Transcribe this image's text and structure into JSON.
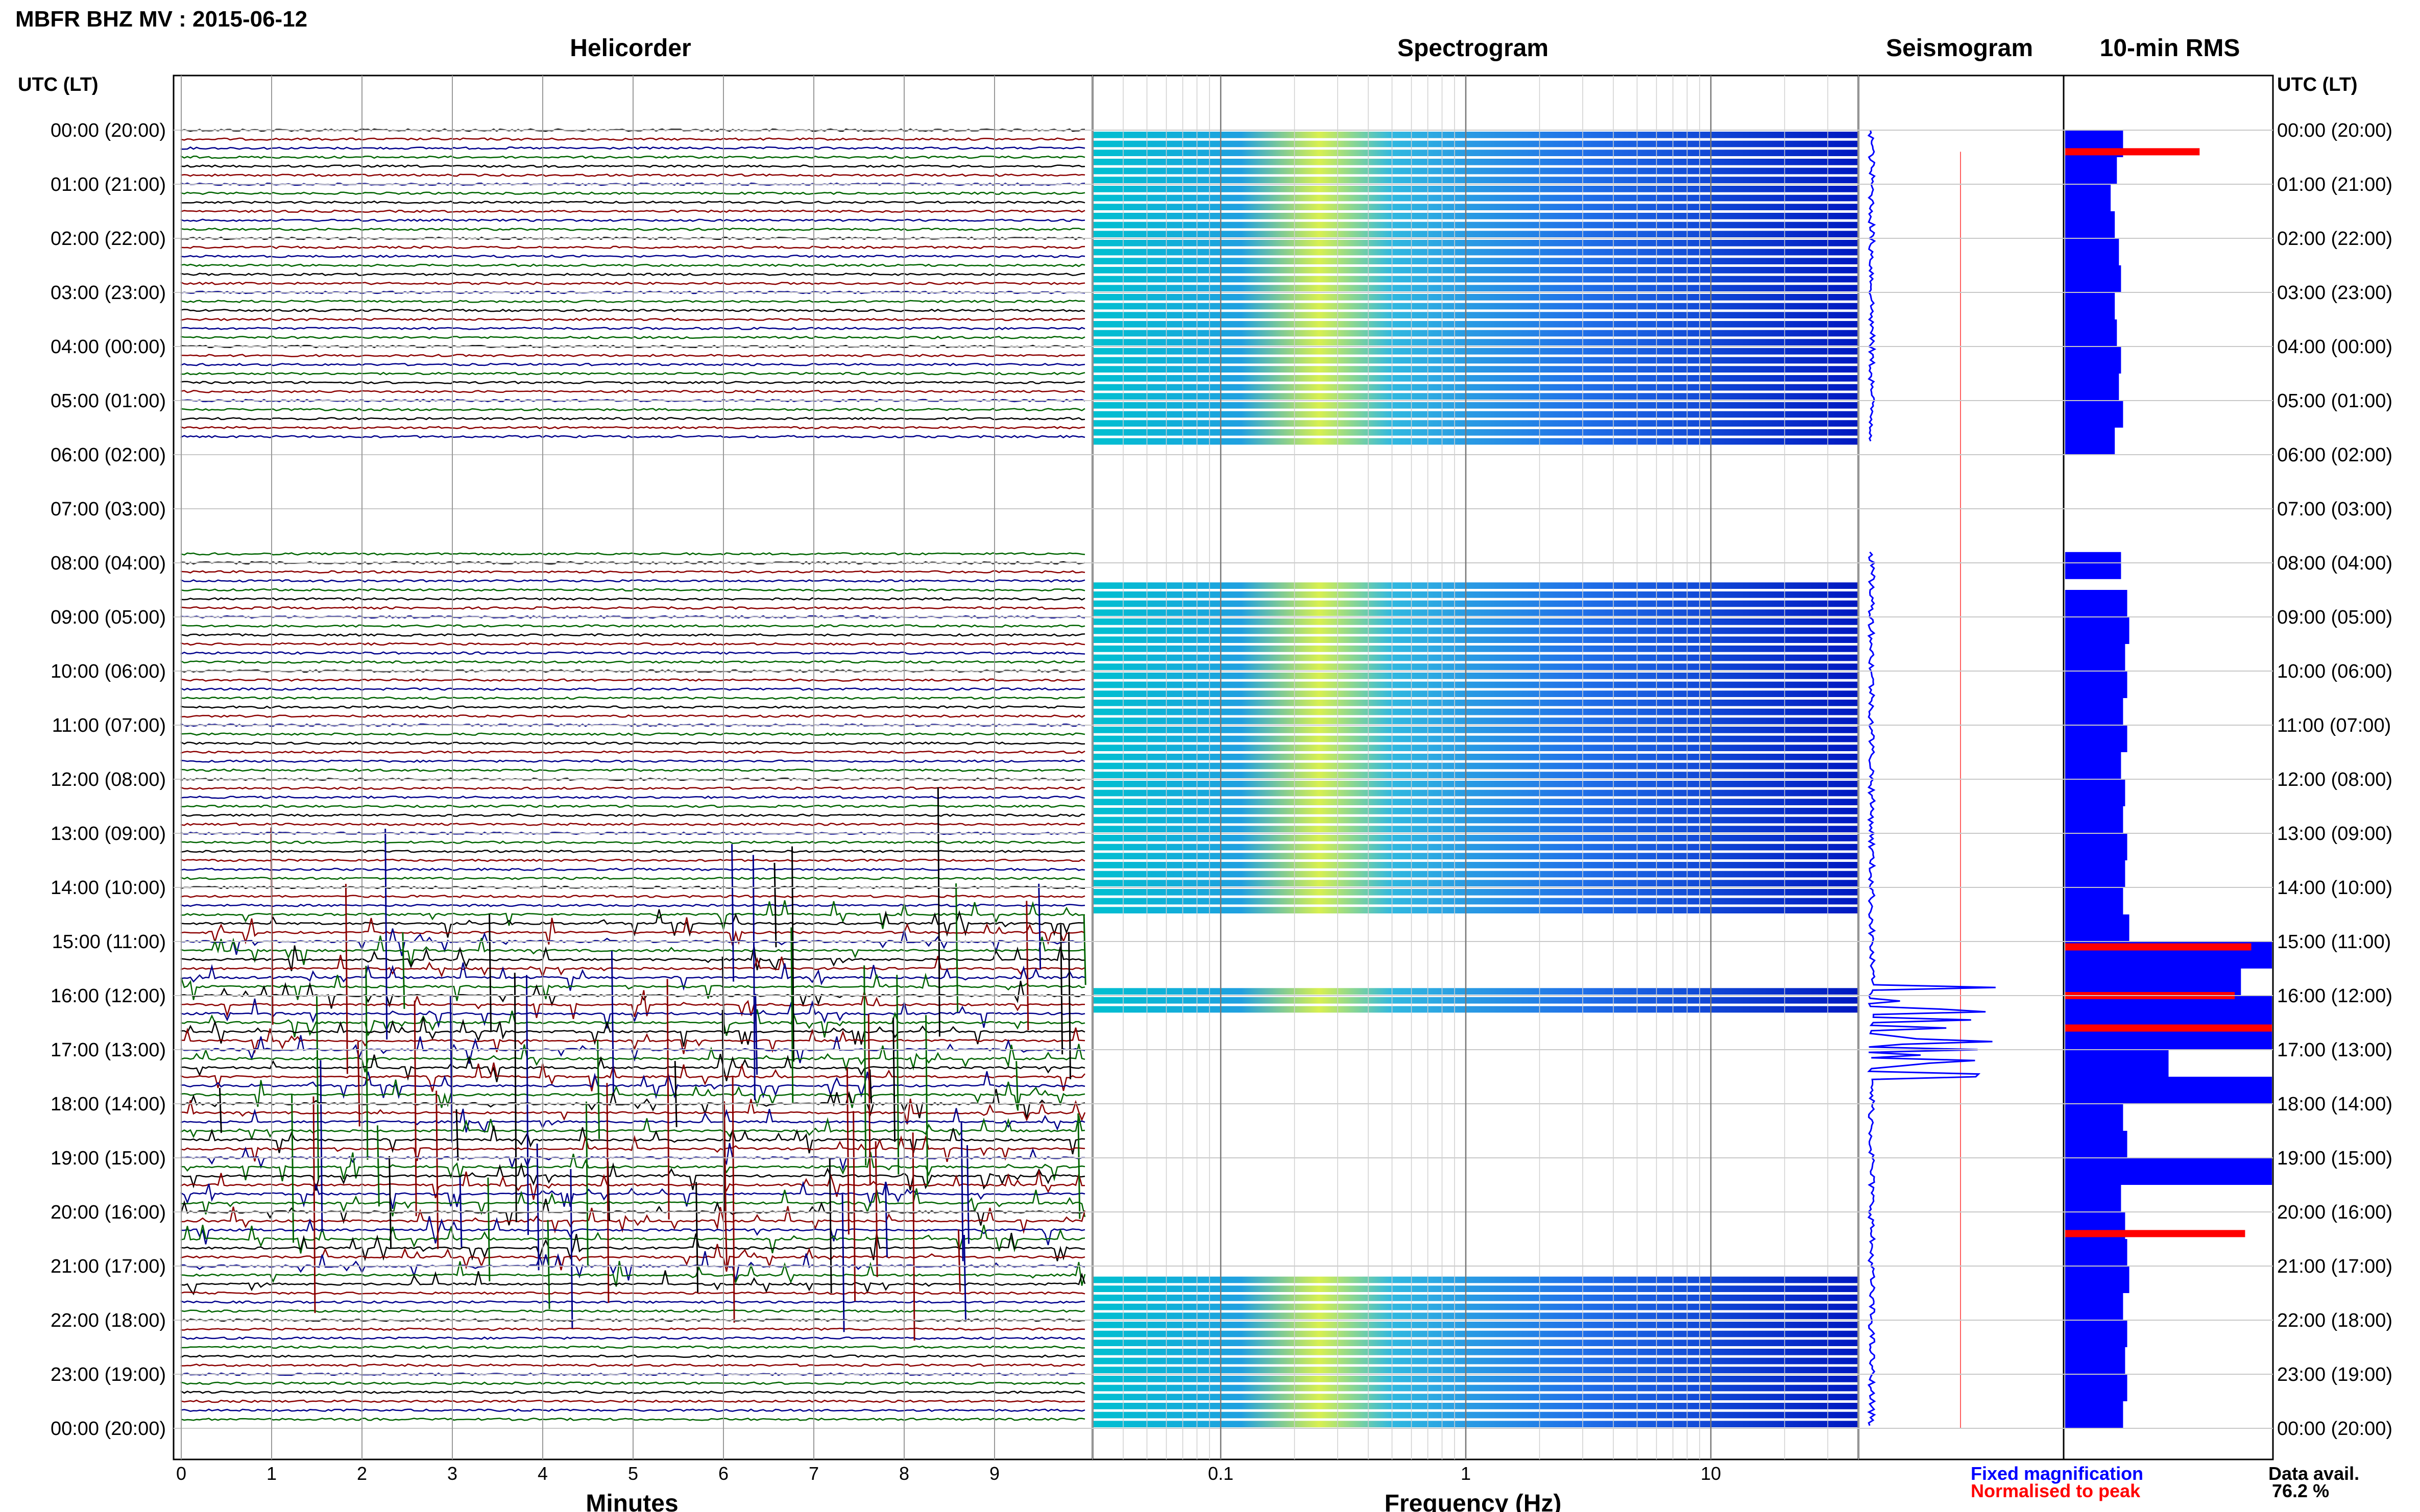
{
  "title": "MBFR BHZ MV : 2015-06-12",
  "panels": {
    "helicorder": "Helicorder",
    "spectrogram": "Spectrogram",
    "seismogram": "Seismogram",
    "rms": "10-min RMS"
  },
  "time_header": "UTC (LT)",
  "time_labels": [
    "00:00 (20:00)",
    "01:00 (21:00)",
    "02:00 (22:00)",
    "03:00 (23:00)",
    "04:00 (00:00)",
    "05:00 (01:00)",
    "06:00 (02:00)",
    "07:00 (03:00)",
    "08:00 (04:00)",
    "09:00 (05:00)",
    "10:00 (06:00)",
    "11:00 (07:00)",
    "12:00 (08:00)",
    "13:00 (09:00)",
    "14:00 (10:00)",
    "15:00 (11:00)",
    "16:00 (12:00)",
    "17:00 (13:00)",
    "18:00 (14:00)",
    "19:00 (15:00)",
    "20:00 (16:00)",
    "21:00 (17:00)",
    "22:00 (18:00)",
    "23:00 (19:00)",
    "00:00 (20:00)"
  ],
  "x_axes": {
    "minutes_ticks": [
      "0",
      "1",
      "2",
      "3",
      "4",
      "5",
      "6",
      "7",
      "8",
      "9"
    ],
    "minutes_label": "Minutes",
    "freq_ticks": [
      "0.1",
      "1",
      "10"
    ],
    "freq_label": "Frequency (Hz)"
  },
  "legend": {
    "fixed": "Fixed magnification",
    "normalised": "Normalised to peak"
  },
  "data_availability": {
    "label": "Data avail.",
    "value": "76.2 %"
  },
  "colors": {
    "trace_black": "#000000",
    "trace_red": "#8b0000",
    "trace_blue": "#00008b",
    "trace_green": "#006400",
    "rms_fixed": "#0000ff",
    "rms_normalised": "#ff0000"
  },
  "chart_data": [
    {
      "type": "line",
      "title": "Helicorder",
      "xlabel": "Minutes",
      "xlim": [
        0,
        10
      ],
      "rows_per_hour": 6,
      "data_gap_hours": [
        [
          5.8,
          7.8
        ]
      ],
      "high_activity_hours": [
        [
          14.5,
          21.5
        ]
      ]
    },
    {
      "type": "heatmap",
      "title": "Spectrogram",
      "xlabel": "Frequency (Hz)",
      "x_scale": "log",
      "xlim": [
        0.03,
        40
      ],
      "peak_frequency_hz": 0.25,
      "data_hours": [
        [
          0,
          5.8
        ],
        [
          8.2,
          14.5
        ],
        [
          15.8,
          16.3
        ],
        [
          21.1,
          24
        ]
      ]
    },
    {
      "type": "line",
      "title": "Seismogram",
      "data_hours": [
        [
          0,
          5.8
        ],
        [
          7.8,
          24
        ]
      ]
    },
    {
      "type": "bar",
      "title": "10-min RMS",
      "orientation": "horizontal",
      "xlim": [
        0,
        1
      ],
      "series_fixed_hours": [
        0.0,
        0.5,
        1.0,
        1.5,
        2.0,
        2.5,
        3.0,
        3.5,
        4.0,
        4.5,
        5.0,
        5.5,
        7.8,
        8.5,
        9.0,
        9.5,
        10.0,
        10.5,
        11.0,
        11.5,
        12.0,
        12.5,
        13.0,
        13.5,
        14.0,
        14.5,
        15.0,
        15.5,
        16.0,
        16.5,
        17.0,
        17.5,
        18.0,
        18.5,
        19.0,
        19.5,
        20.0,
        20.5,
        21.0,
        21.5,
        22.0,
        22.5,
        23.0,
        23.5
      ],
      "series_fixed_values": [
        0.28,
        0.25,
        0.22,
        0.24,
        0.26,
        0.27,
        0.24,
        0.25,
        0.27,
        0.26,
        0.28,
        0.24,
        0.27,
        0.3,
        0.31,
        0.29,
        0.3,
        0.28,
        0.3,
        0.27,
        0.29,
        0.28,
        0.3,
        0.29,
        0.28,
        0.31,
        1.0,
        0.85,
        1.0,
        1.0,
        0.5,
        1.0,
        0.28,
        0.3,
        1.0,
        0.27,
        0.29,
        0.3,
        0.31,
        0.28,
        0.3,
        0.29,
        0.3,
        0.28
      ],
      "normalised_peaks_hours": [
        0.4,
        15.1,
        16.0,
        16.6,
        20.4
      ],
      "normalised_peaks_values": [
        0.65,
        0.9,
        0.82,
        1.0,
        0.87
      ]
    }
  ]
}
